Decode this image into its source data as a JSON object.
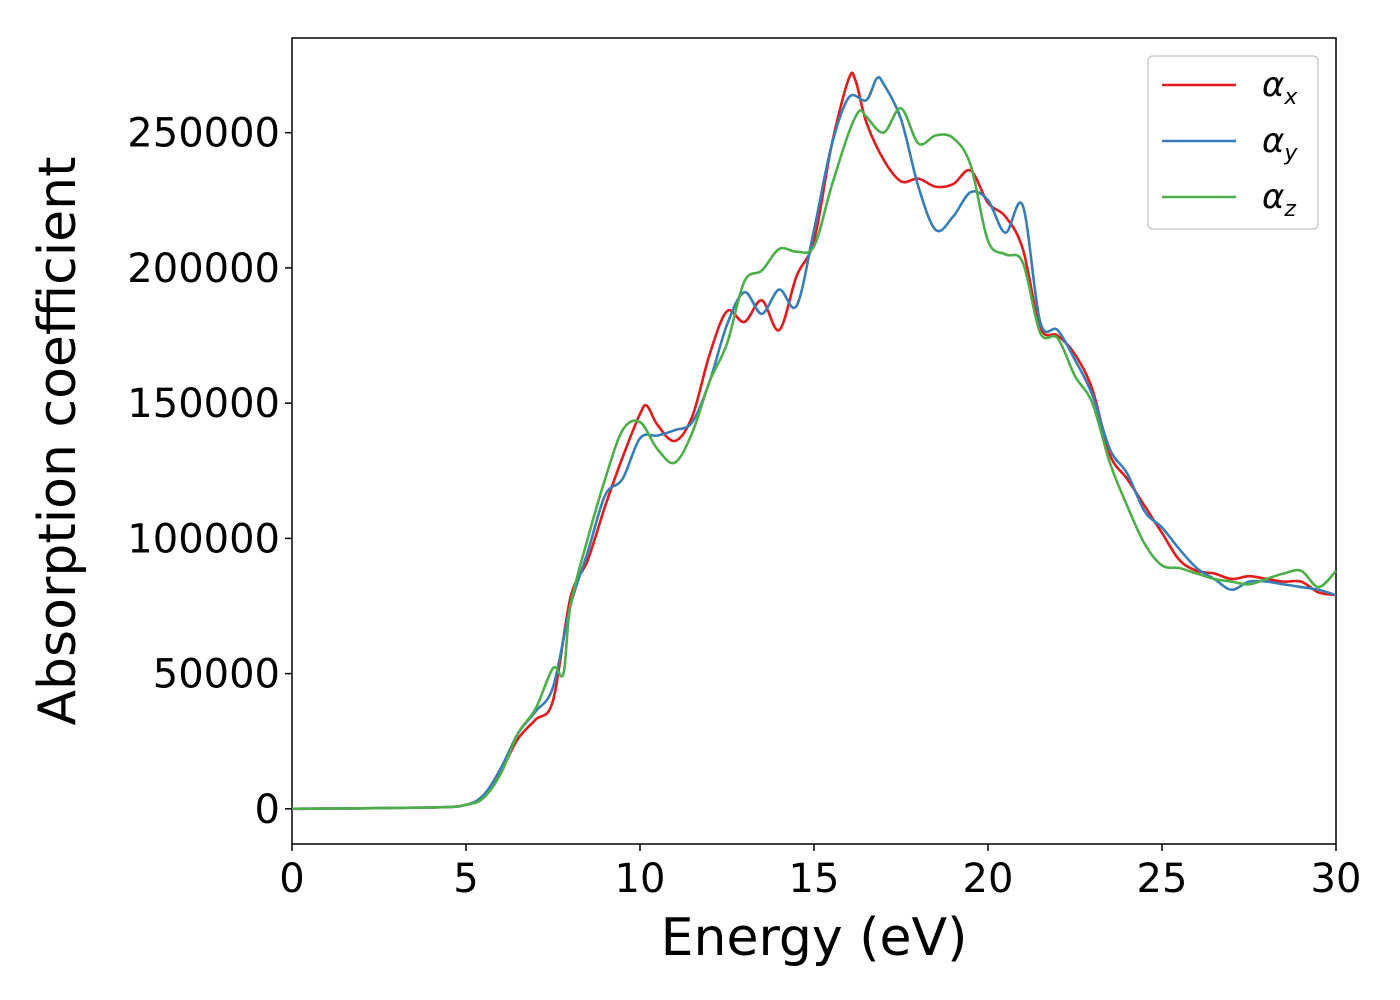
{
  "chart_data": {
    "type": "line",
    "xlabel": "Energy (eV)",
    "ylabel": "Absorption coefficient",
    "xlim": [
      0,
      30
    ],
    "ylim": [
      -13000,
      285000
    ],
    "xticks": [
      0,
      5,
      10,
      15,
      20,
      25,
      30
    ],
    "yticks": [
      0,
      50000,
      100000,
      150000,
      200000,
      250000
    ],
    "grid": false,
    "legend_position": "top-right",
    "series": [
      {
        "name": "α",
        "sub": "x",
        "color": "#e41a1c",
        "x": [
          0,
          4,
          5,
          5.5,
          6,
          6.5,
          7,
          7.5,
          8,
          8.5,
          9,
          9.5,
          10,
          10.2,
          10.5,
          11,
          11.5,
          12,
          12.5,
          13,
          13.5,
          14,
          14.5,
          15,
          15.5,
          16,
          16.2,
          16.5,
          17,
          17.5,
          18,
          18.5,
          19,
          19.5,
          20,
          20.5,
          21,
          21.5,
          22,
          22.5,
          23,
          23.5,
          24,
          24.5,
          25,
          25.5,
          26,
          26.5,
          27,
          27.5,
          28,
          28.5,
          29,
          29.5,
          30
        ],
        "y": [
          0,
          500,
          1500,
          5000,
          14000,
          26000,
          33000,
          40000,
          78000,
          92000,
          112000,
          130000,
          146000,
          149000,
          142000,
          136000,
          145000,
          168000,
          184000,
          180000,
          188000,
          177000,
          197000,
          210000,
          245000,
          270000,
          269000,
          254000,
          240000,
          232000,
          233000,
          230000,
          231000,
          236000,
          224000,
          219000,
          207000,
          178000,
          175000,
          168000,
          155000,
          131000,
          122000,
          112000,
          102000,
          92000,
          88000,
          87000,
          85000,
          86000,
          85000,
          84000,
          84000,
          80000,
          79000
        ]
      },
      {
        "name": "α",
        "sub": "y",
        "color": "#377eb8",
        "x": [
          0,
          4,
          5,
          5.5,
          6,
          6.5,
          7,
          7.5,
          8,
          8.5,
          9,
          9.5,
          10,
          10.5,
          11,
          11.5,
          12,
          12.5,
          13,
          13.5,
          14,
          14.5,
          15,
          15.5,
          16,
          16.5,
          16.8,
          17,
          17.5,
          18,
          18.5,
          19,
          19.5,
          20,
          20.5,
          21,
          21.5,
          22,
          22.5,
          23,
          23.5,
          24,
          24.5,
          25,
          25.5,
          26,
          26.5,
          27,
          27.5,
          28,
          28.5,
          29,
          29.5,
          30
        ],
        "y": [
          0,
          500,
          1500,
          5000,
          15000,
          28000,
          36000,
          45000,
          75000,
          95000,
          116000,
          122000,
          137000,
          138000,
          140000,
          143000,
          158000,
          179000,
          191000,
          183000,
          192000,
          186000,
          214000,
          245000,
          263000,
          262000,
          270000,
          268000,
          255000,
          230000,
          214000,
          219000,
          228000,
          225000,
          213000,
          223000,
          180000,
          177000,
          166000,
          153000,
          133000,
          124000,
          110000,
          104000,
          96000,
          89000,
          85000,
          81000,
          84000,
          84000,
          83000,
          82000,
          81000,
          79000
        ]
      },
      {
        "name": "α",
        "sub": "z",
        "color": "#4daf4a",
        "x": [
          0,
          4,
          5,
          5.5,
          6,
          6.5,
          7,
          7.5,
          7.8,
          8,
          8.5,
          9,
          9.5,
          10,
          10.5,
          11,
          11.5,
          12,
          12.5,
          13,
          13.5,
          14,
          14.5,
          15,
          15.5,
          16,
          16.3,
          16.5,
          17,
          17.5,
          18,
          18.5,
          19,
          19.5,
          20,
          20.5,
          21,
          21.5,
          22,
          22.5,
          23,
          23.5,
          24,
          24.5,
          25,
          25.5,
          26,
          26.5,
          27,
          27.5,
          28,
          28.5,
          29,
          29.5,
          30
        ],
        "y": [
          0,
          500,
          1500,
          4000,
          13000,
          28000,
          37000,
          52000,
          50000,
          75000,
          100000,
          122000,
          140000,
          143000,
          133000,
          128000,
          139000,
          158000,
          172000,
          195000,
          199000,
          207000,
          206000,
          208000,
          230000,
          250000,
          258000,
          256000,
          250000,
          259000,
          246000,
          249000,
          248000,
          238000,
          210000,
          205000,
          202000,
          176000,
          174000,
          160000,
          150000,
          128000,
          112000,
          98000,
          90000,
          89000,
          87000,
          85000,
          84000,
          83000,
          85000,
          87000,
          88000,
          82000,
          88000
        ]
      }
    ]
  }
}
